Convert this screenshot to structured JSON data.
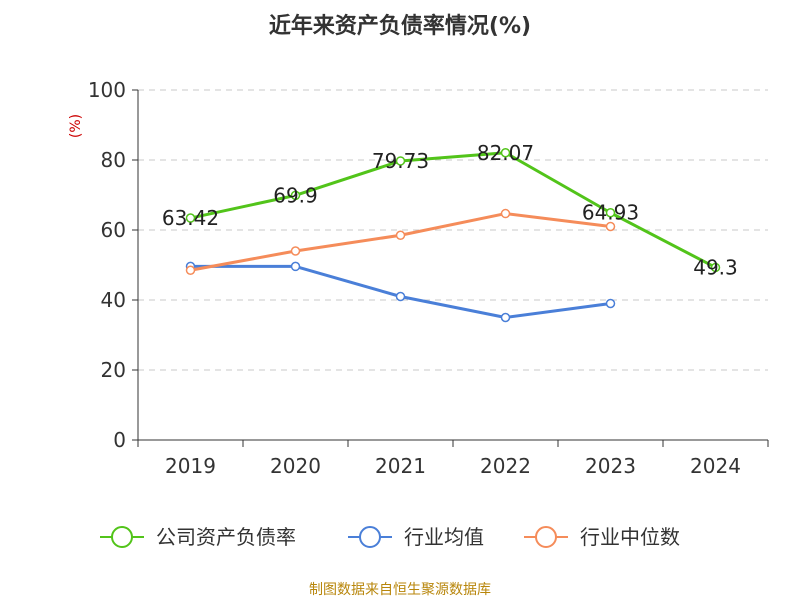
{
  "chart_data": {
    "type": "line",
    "title": "近年来资产负债率情况(%)",
    "ylabel": "(%)",
    "xlabel": "",
    "categories": [
      "2019",
      "2020",
      "2021",
      "2022",
      "2023",
      "2024"
    ],
    "ylim": [
      0,
      100
    ],
    "yticks": [
      0,
      20,
      40,
      60,
      80,
      100
    ],
    "grid": true,
    "legend_position": "bottom",
    "series": [
      {
        "name": "公司资产负债率",
        "color": "#52c41a",
        "values": [
          63.42,
          69.9,
          79.73,
          82.07,
          64.93,
          49.3
        ],
        "labels": [
          "63.42",
          "69.9",
          "79.73",
          "82.07",
          "64.93",
          "49.3"
        ]
      },
      {
        "name": "行业均值",
        "color": "#4a7fd8",
        "values": [
          49.6,
          49.6,
          41.0,
          35.0,
          39.0,
          null
        ],
        "labels": []
      },
      {
        "name": "行业中位数",
        "color": "#f58c5a",
        "values": [
          48.5,
          54.0,
          58.5,
          64.7,
          61.0,
          null
        ],
        "labels": []
      }
    ]
  },
  "source": "制图数据来自恒生聚源数据库"
}
